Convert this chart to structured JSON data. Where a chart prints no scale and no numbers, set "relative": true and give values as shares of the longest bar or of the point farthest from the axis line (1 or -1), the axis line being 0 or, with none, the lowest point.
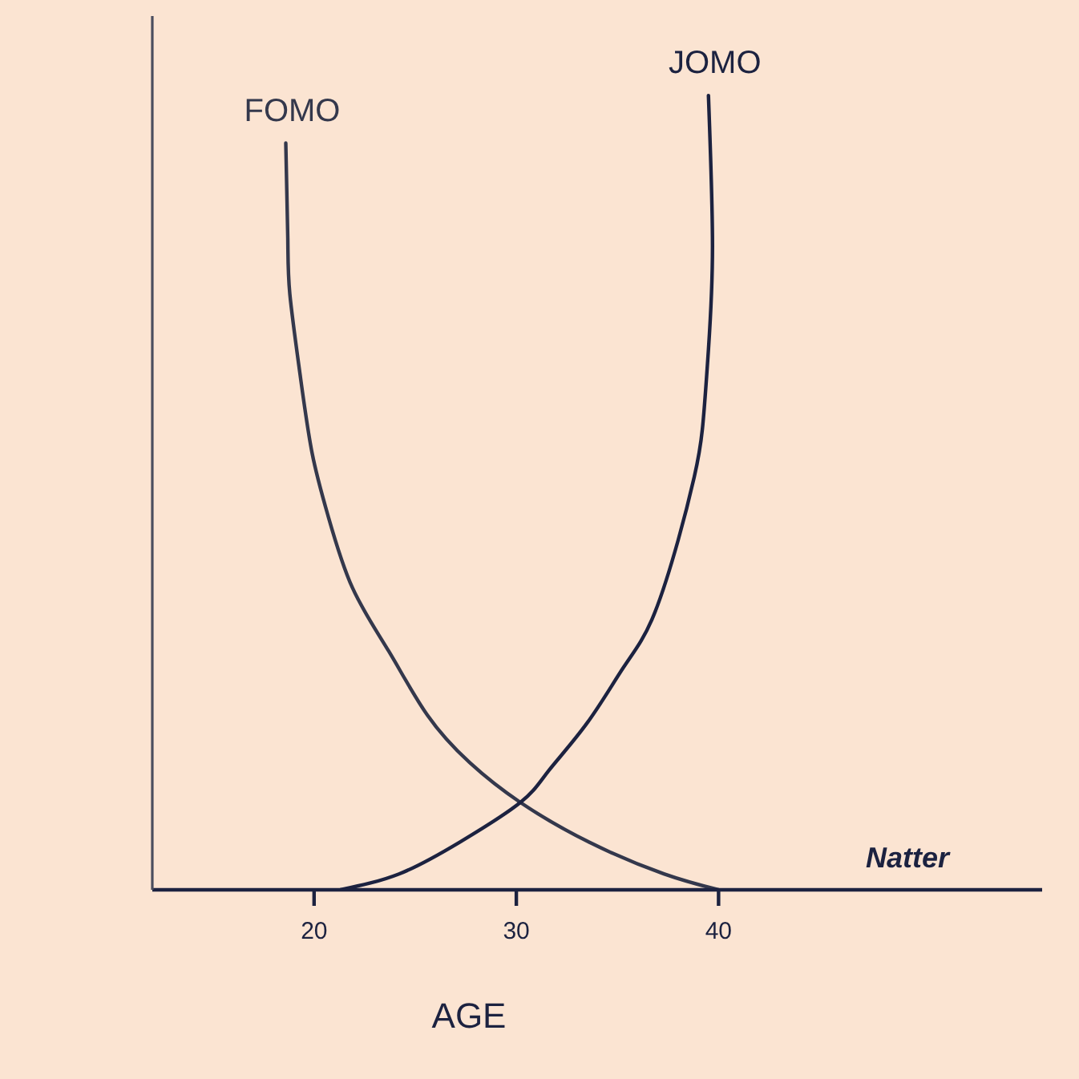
{
  "chart_data": {
    "type": "line",
    "relative": true,
    "xlabel": "AGE",
    "xlim": [
      12,
      56
    ],
    "xticks": [
      20,
      30,
      40
    ],
    "tick_labels": "x",
    "marker": "none",
    "line_style": "solid",
    "series": [
      {
        "name": "FOMO",
        "color": "#34384c",
        "x": [
          18.6,
          18.7,
          18.8,
          19.3,
          19.9,
          20.7,
          21.9,
          23.7,
          25.6,
          27.7,
          30.2,
          33.6,
          37.3,
          40
        ],
        "values": [
          0.94,
          0.82,
          0.75,
          0.65,
          0.55,
          0.47,
          0.38,
          0.3,
          0.22,
          0.16,
          0.11,
          0.06,
          0.02,
          0
        ]
      },
      {
        "name": "JOMO",
        "color": "#1c2240",
        "x": [
          21.3,
          24.2,
          27.2,
          30.2,
          31.6,
          33.5,
          35.3,
          36.7,
          38.0,
          38.8,
          39.2,
          39.5,
          39.7,
          39.5
        ],
        "values": [
          0,
          0.02,
          0.06,
          0.11,
          0.15,
          0.21,
          0.28,
          0.34,
          0.44,
          0.52,
          0.58,
          0.68,
          0.81,
          1
        ]
      }
    ],
    "annotations": [
      "Natter"
    ]
  }
}
